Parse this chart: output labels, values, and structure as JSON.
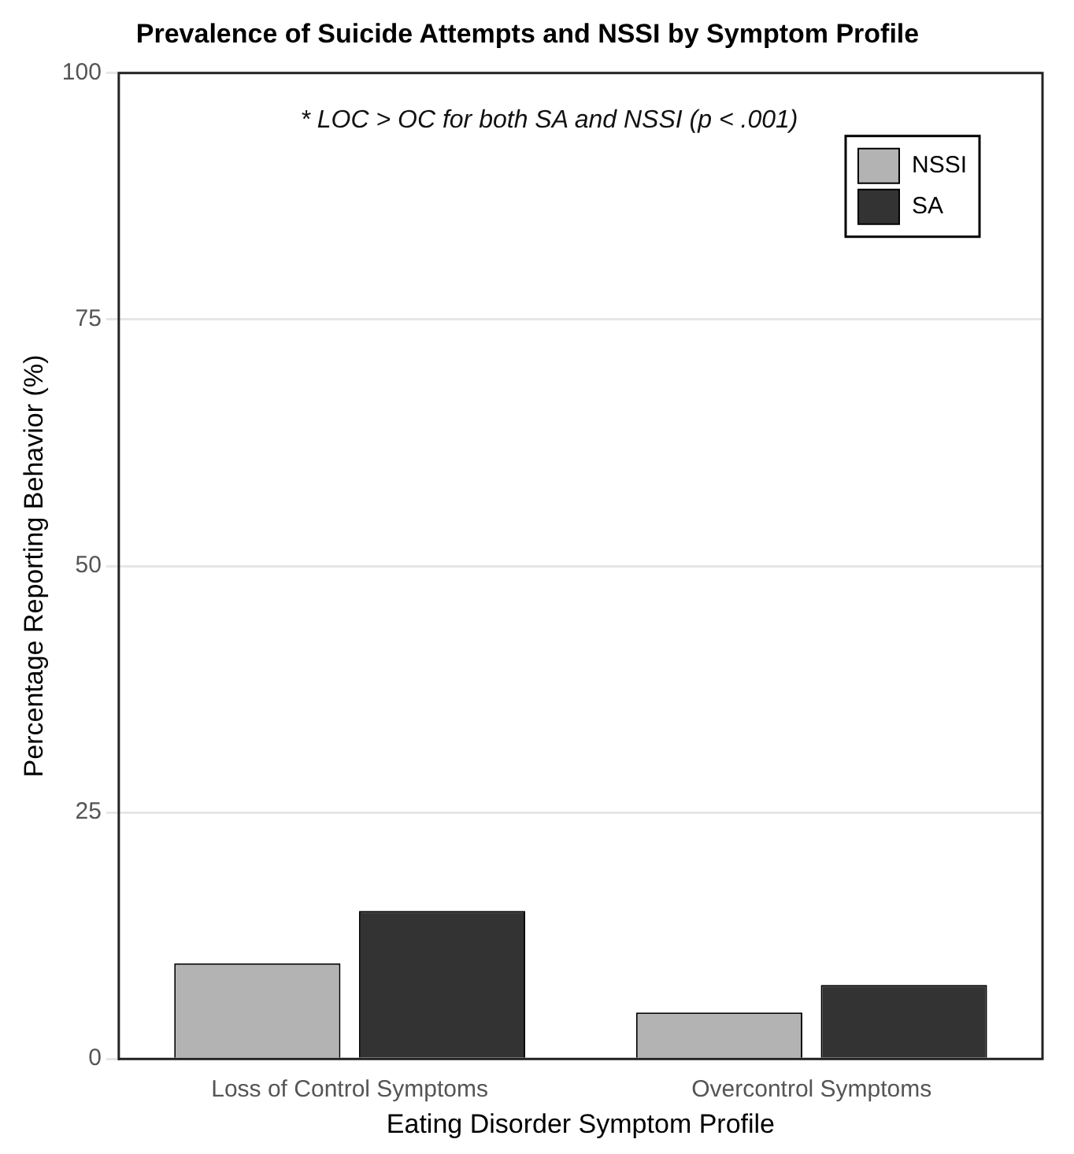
{
  "chart_data": {
    "type": "bar",
    "title": "Prevalence of Suicide Attempts and NSSI by Symptom Profile",
    "xlabel": "Eating Disorder Symptom Profile",
    "ylabel": "Percentage Reporting Behavior (%)",
    "annotations": [
      "* LOC > OC for both SA and NSSI (p < .001)"
    ],
    "categories": [
      "Loss of Control Symptoms",
      "Overcontrol Symptoms"
    ],
    "series": [
      {
        "name": "NSSI",
        "color": "#b3b3b3",
        "values": [
          9.7,
          4.7
        ]
      },
      {
        "name": "SA",
        "color": "#333333",
        "values": [
          15.0,
          7.5
        ]
      }
    ],
    "ylim": [
      0,
      100
    ],
    "yticks": [
      0,
      25,
      50,
      75,
      100
    ],
    "grid": "y",
    "legend": "top right"
  }
}
